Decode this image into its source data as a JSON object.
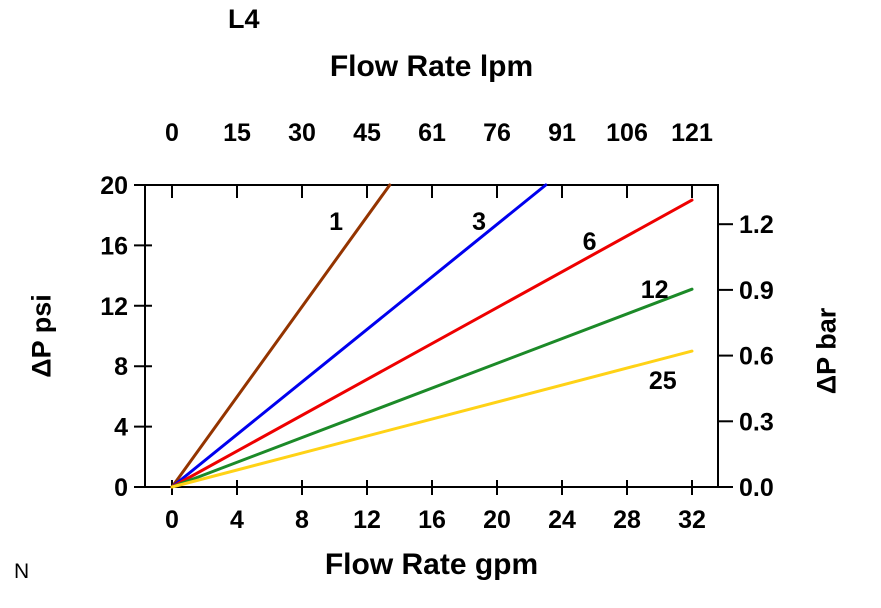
{
  "note": "N",
  "chart_data": {
    "type": "line",
    "title": "L4",
    "grid": false,
    "legend": "inline-labels",
    "x_bottom": {
      "label": "Flow Rate gpm",
      "ticks": [
        0,
        4,
        8,
        12,
        16,
        20,
        24,
        28,
        32
      ],
      "range": [
        0,
        32
      ]
    },
    "x_top": {
      "label": "Flow Rate lpm",
      "tick_labels": [
        "0",
        "15",
        "30",
        "45",
        "61",
        "76",
        "91",
        "106",
        "121"
      ]
    },
    "y_left": {
      "label": "ΔP psi",
      "ticks": [
        0,
        4,
        8,
        12,
        16,
        20
      ],
      "range": [
        0,
        20
      ]
    },
    "y_right": {
      "label": "ΔP bar",
      "tick_labels": [
        "0.0",
        "0.3",
        "0.6",
        "0.9",
        "1.2"
      ],
      "psi_per_bar": 14.5038
    },
    "series": [
      {
        "name": "1",
        "color": "#943400",
        "points": [
          [
            0,
            0
          ],
          [
            13.4,
            20
          ]
        ],
        "label_pos": [
          10.1,
          17.6
        ]
      },
      {
        "name": "3",
        "color": "#0000EE",
        "points": [
          [
            0,
            0
          ],
          [
            23,
            20
          ]
        ],
        "label_pos": [
          18.9,
          17.6
        ]
      },
      {
        "name": "6",
        "color": "#EE0000",
        "points": [
          [
            0,
            0
          ],
          [
            32,
            19
          ]
        ],
        "label_pos": [
          25.7,
          16.3
        ]
      },
      {
        "name": "12",
        "color": "#1C8A28",
        "points": [
          [
            0,
            0
          ],
          [
            32,
            13.1
          ]
        ],
        "label_pos": [
          29.7,
          13.1
        ]
      },
      {
        "name": "25",
        "color": "#FFD216",
        "points": [
          [
            0,
            0
          ],
          [
            32,
            9
          ]
        ],
        "label_pos": [
          30.2,
          7.1
        ]
      }
    ]
  }
}
